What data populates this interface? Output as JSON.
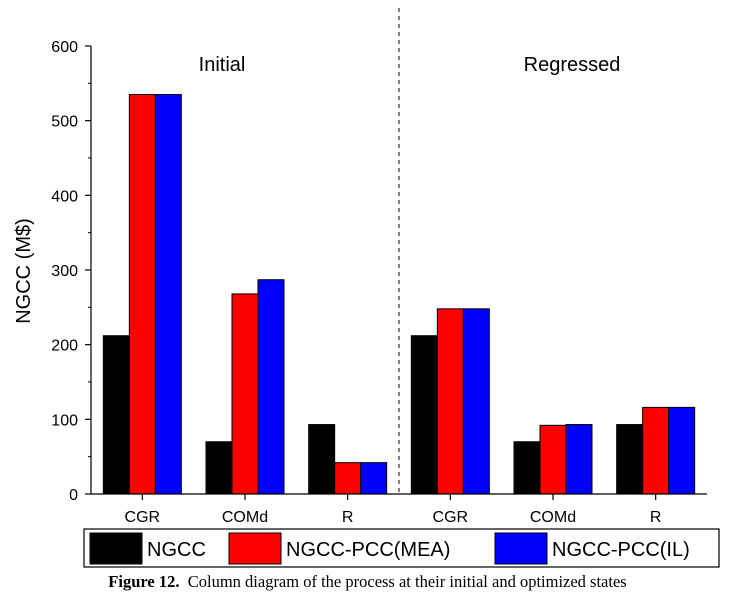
{
  "chart_data": {
    "type": "bar",
    "ylabel": "NGCC (M$)",
    "ylim": [
      0,
      600
    ],
    "yticks": [
      0,
      100,
      200,
      300,
      400,
      500,
      600
    ],
    "grid": false,
    "legend_position": "bottom",
    "categories": [
      "CGR",
      "COMd",
      "R",
      "CGR",
      "COMd",
      "R"
    ],
    "groups": [
      {
        "label": "Initial",
        "category_indices": [
          0,
          1,
          2
        ]
      },
      {
        "label": "Regressed",
        "category_indices": [
          3,
          4,
          5
        ]
      }
    ],
    "series": [
      {
        "name": "NGCC",
        "color": "#000000",
        "values": [
          212,
          70,
          93,
          212,
          70,
          93
        ]
      },
      {
        "name": "NGCC-PCC(MEA)",
        "color": "#ff0000",
        "values": [
          535,
          268,
          42,
          248,
          92,
          116
        ]
      },
      {
        "name": "NGCC-PCC(IL)",
        "color": "#0000ff",
        "values": [
          535,
          287,
          42,
          248,
          93,
          116
        ]
      }
    ]
  },
  "caption": {
    "label": "Figure 12.",
    "text": "Column diagram of the process at their initial and optimized states"
  }
}
